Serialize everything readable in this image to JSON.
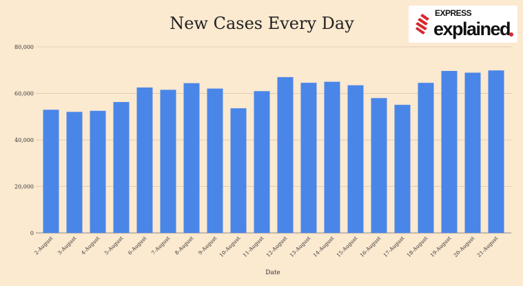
{
  "chart_data": {
    "type": "bar",
    "title": "New Cases Every Day",
    "xlabel": "Date",
    "ylabel": "",
    "ylim": [
      0,
      80000
    ],
    "yticks": [
      "0",
      "20,000",
      "40,000",
      "60,000",
      "80,000"
    ],
    "ytick_values": [
      0,
      20000,
      40000,
      60000,
      80000
    ],
    "grid": true,
    "bar_color": "#4a86e8",
    "categories": [
      "2-August",
      "3-August",
      "4-August",
      "5-August",
      "6-August",
      "7-August",
      "8-August",
      "9-August",
      "10-August",
      "11-August",
      "12-August",
      "13-August",
      "14-August",
      "15-August",
      "16-August",
      "17-August",
      "18-August",
      "19-August",
      "20-August",
      "21-August"
    ],
    "values": [
      52972,
      52050,
      52509,
      56282,
      62538,
      61537,
      64399,
      62064,
      53601,
      60963,
      66999,
      64553,
      65002,
      63490,
      57981,
      55079,
      64531,
      69652,
      68898,
      69878
    ]
  },
  "logo": {
    "top": "EXPRESS",
    "bottom": "explained",
    "accent": "#d7282f"
  }
}
